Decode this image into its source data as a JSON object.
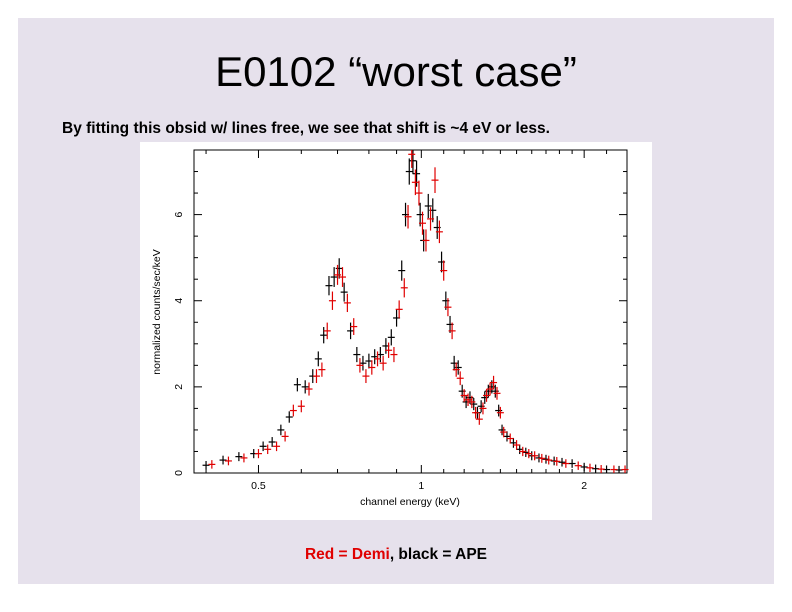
{
  "slide": {
    "title": "E0102 “worst case”",
    "subtitle": "By fitting this obsid w/ lines free, we see that shift is ~4 eV or less.",
    "caption_red": "Red = Demi",
    "caption_rest": ", black = APE"
  },
  "colors": {
    "slide_bg": "#e6e1ec",
    "ape_color": "#000000",
    "demi_color": "#e00000"
  },
  "chart_data": {
    "type": "scatter",
    "xscale": "log",
    "xlabel": "channel energy (keV)",
    "ylabel": "normalized counts/sec/keV",
    "xlim": [
      0.38,
      2.4
    ],
    "ylim": [
      0,
      7.5
    ],
    "xticks": [
      0.5,
      1,
      2
    ],
    "xtick_labels": [
      "0.5",
      "1",
      "2"
    ],
    "yticks": [
      0,
      2,
      4,
      6
    ],
    "ytick_labels": [
      "0",
      "2",
      "4",
      "6"
    ],
    "legend": "none",
    "series": [
      {
        "color": "#000000",
        "points": [
          [
            0.4,
            0.18
          ],
          [
            0.43,
            0.3
          ],
          [
            0.46,
            0.38
          ],
          [
            0.49,
            0.45
          ],
          [
            0.51,
            0.62
          ],
          [
            0.53,
            0.72
          ],
          [
            0.55,
            1.0
          ],
          [
            0.57,
            1.3
          ],
          [
            0.59,
            2.05
          ],
          [
            0.61,
            2.0
          ],
          [
            0.63,
            2.25
          ],
          [
            0.645,
            2.65
          ],
          [
            0.66,
            3.2
          ],
          [
            0.675,
            4.35
          ],
          [
            0.69,
            4.55
          ],
          [
            0.705,
            4.75
          ],
          [
            0.72,
            4.2
          ],
          [
            0.74,
            3.3
          ],
          [
            0.76,
            2.75
          ],
          [
            0.78,
            2.55
          ],
          [
            0.8,
            2.6
          ],
          [
            0.82,
            2.7
          ],
          [
            0.84,
            2.75
          ],
          [
            0.86,
            2.95
          ],
          [
            0.88,
            3.15
          ],
          [
            0.9,
            3.6
          ],
          [
            0.92,
            4.7
          ],
          [
            0.935,
            6.0
          ],
          [
            0.95,
            7.0
          ],
          [
            0.965,
            7.25
          ],
          [
            0.98,
            6.95
          ],
          [
            0.995,
            6.0
          ],
          [
            1.01,
            5.4
          ],
          [
            1.03,
            6.2
          ],
          [
            1.05,
            6.1
          ],
          [
            1.07,
            5.7
          ],
          [
            1.09,
            4.9
          ],
          [
            1.11,
            4.0
          ],
          [
            1.13,
            3.45
          ],
          [
            1.15,
            2.55
          ],
          [
            1.17,
            2.45
          ],
          [
            1.19,
            1.9
          ],
          [
            1.21,
            1.65
          ],
          [
            1.23,
            1.75
          ],
          [
            1.25,
            1.6
          ],
          [
            1.27,
            1.4
          ],
          [
            1.29,
            1.55
          ],
          [
            1.31,
            1.75
          ],
          [
            1.33,
            1.9
          ],
          [
            1.35,
            2.0
          ],
          [
            1.37,
            1.9
          ],
          [
            1.39,
            1.45
          ],
          [
            1.41,
            1.0
          ],
          [
            1.44,
            0.85
          ],
          [
            1.48,
            0.7
          ],
          [
            1.52,
            0.55
          ],
          [
            1.56,
            0.48
          ],
          [
            1.6,
            0.4
          ],
          [
            1.65,
            0.35
          ],
          [
            1.7,
            0.32
          ],
          [
            1.76,
            0.28
          ],
          [
            1.82,
            0.25
          ],
          [
            1.9,
            0.22
          ],
          [
            2.0,
            0.14
          ],
          [
            2.1,
            0.1
          ],
          [
            2.2,
            0.08
          ],
          [
            2.32,
            0.07
          ]
        ]
      },
      {
        "color": "#e00000",
        "points": [
          [
            0.41,
            0.2
          ],
          [
            0.44,
            0.28
          ],
          [
            0.47,
            0.35
          ],
          [
            0.5,
            0.45
          ],
          [
            0.52,
            0.55
          ],
          [
            0.54,
            0.62
          ],
          [
            0.56,
            0.85
          ],
          [
            0.58,
            1.45
          ],
          [
            0.6,
            1.55
          ],
          [
            0.62,
            1.95
          ],
          [
            0.64,
            2.25
          ],
          [
            0.655,
            2.4
          ],
          [
            0.67,
            3.3
          ],
          [
            0.685,
            4.0
          ],
          [
            0.7,
            4.6
          ],
          [
            0.715,
            4.55
          ],
          [
            0.73,
            3.95
          ],
          [
            0.75,
            3.4
          ],
          [
            0.77,
            2.5
          ],
          [
            0.79,
            2.25
          ],
          [
            0.81,
            2.45
          ],
          [
            0.83,
            2.65
          ],
          [
            0.85,
            2.55
          ],
          [
            0.87,
            2.85
          ],
          [
            0.89,
            2.75
          ],
          [
            0.91,
            3.8
          ],
          [
            0.93,
            4.3
          ],
          [
            0.945,
            5.95
          ],
          [
            0.96,
            7.4
          ],
          [
            0.975,
            6.75
          ],
          [
            0.99,
            6.5
          ],
          [
            1.005,
            5.8
          ],
          [
            1.02,
            5.4
          ],
          [
            1.04,
            5.9
          ],
          [
            1.06,
            6.8
          ],
          [
            1.08,
            5.6
          ],
          [
            1.1,
            4.7
          ],
          [
            1.12,
            3.85
          ],
          [
            1.14,
            3.3
          ],
          [
            1.16,
            2.4
          ],
          [
            1.18,
            2.2
          ],
          [
            1.2,
            1.8
          ],
          [
            1.22,
            1.7
          ],
          [
            1.24,
            1.65
          ],
          [
            1.26,
            1.4
          ],
          [
            1.28,
            1.25
          ],
          [
            1.3,
            1.5
          ],
          [
            1.32,
            1.8
          ],
          [
            1.34,
            1.95
          ],
          [
            1.36,
            2.1
          ],
          [
            1.38,
            1.85
          ],
          [
            1.4,
            1.4
          ],
          [
            1.42,
            0.95
          ],
          [
            1.46,
            0.8
          ],
          [
            1.5,
            0.65
          ],
          [
            1.54,
            0.5
          ],
          [
            1.58,
            0.45
          ],
          [
            1.62,
            0.4
          ],
          [
            1.67,
            0.34
          ],
          [
            1.72,
            0.3
          ],
          [
            1.78,
            0.27
          ],
          [
            1.85,
            0.22
          ],
          [
            1.95,
            0.17
          ],
          [
            2.05,
            0.12
          ],
          [
            2.15,
            0.09
          ],
          [
            2.27,
            0.08
          ],
          [
            2.38,
            0.08
          ]
        ]
      }
    ]
  }
}
